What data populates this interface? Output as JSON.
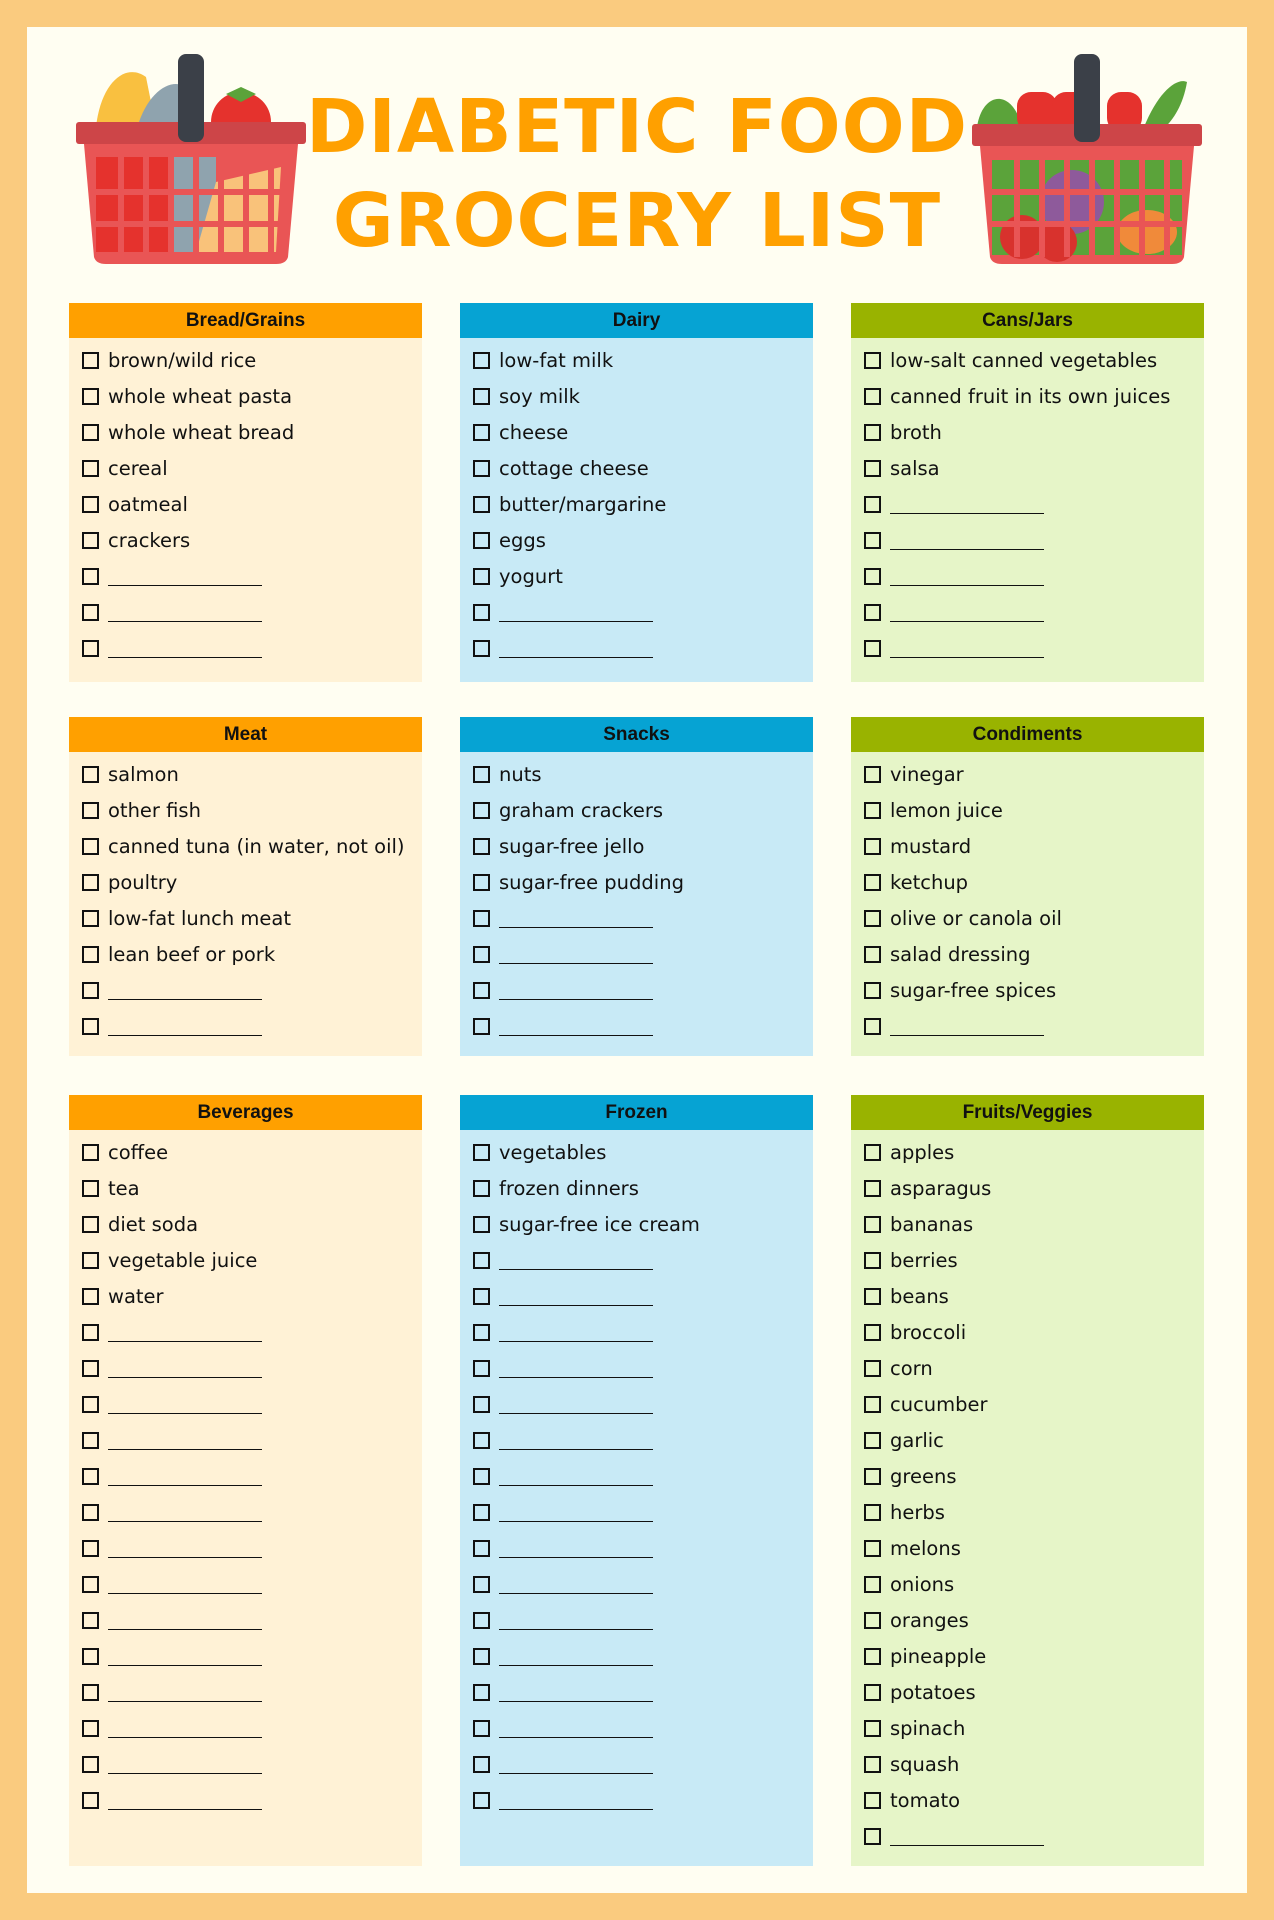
{
  "title": {
    "line1": "DIABETIC FOOD",
    "line2": "GROCERY LIST"
  },
  "colors": {
    "title": "#FFA000",
    "orange": "#FFA000",
    "blue": "#06A3D3",
    "green": "#99B300",
    "border": "#FACB7F"
  },
  "icons": {
    "left": "grocery-basket-fish-bread-icon",
    "right": "grocery-basket-vegetables-icon",
    "checkbox": "checkbox-empty-icon"
  },
  "sections": [
    {
      "title": "Bread/Grains",
      "theme": "orange",
      "items": [
        "brown/wild rice",
        "whole wheat pasta",
        "whole wheat bread",
        "cereal",
        "oatmeal",
        "crackers",
        "",
        "",
        ""
      ]
    },
    {
      "title": "Dairy",
      "theme": "blue",
      "items": [
        "low-fat milk",
        "soy milk",
        "cheese",
        "cottage cheese",
        "butter/margarine",
        "eggs",
        "yogurt",
        "",
        ""
      ]
    },
    {
      "title": "Cans/Jars",
      "theme": "green",
      "items": [
        "low-salt canned vegetables",
        "canned fruit in its own juices",
        "broth",
        "salsa",
        "",
        "",
        "",
        "",
        ""
      ]
    },
    {
      "title": "Meat",
      "theme": "orange",
      "items": [
        "salmon",
        "other fish",
        "canned tuna (in water, not oil)",
        "poultry",
        "low-fat lunch meat",
        "lean beef or pork",
        "",
        ""
      ]
    },
    {
      "title": "Snacks",
      "theme": "blue",
      "items": [
        "nuts",
        "graham crackers",
        "sugar-free jello",
        "sugar-free pudding",
        "",
        "",
        "",
        ""
      ]
    },
    {
      "title": "Condiments",
      "theme": "green",
      "items": [
        "vinegar",
        "lemon juice",
        "mustard",
        "ketchup",
        "olive or canola oil",
        "salad dressing",
        "sugar-free spices",
        ""
      ]
    },
    {
      "title": "Beverages",
      "theme": "orange",
      "items": [
        "coffee",
        "tea",
        "diet soda",
        "vegetable juice",
        "water",
        "",
        "",
        "",
        "",
        "",
        "",
        "",
        "",
        "",
        "",
        "",
        "",
        "",
        ""
      ]
    },
    {
      "title": "Frozen",
      "theme": "blue",
      "items": [
        "vegetables",
        "frozen dinners",
        "sugar-free ice cream",
        "",
        "",
        "",
        "",
        "",
        "",
        "",
        "",
        "",
        "",
        "",
        "",
        "",
        "",
        "",
        ""
      ]
    },
    {
      "title": "Fruits/Veggies",
      "theme": "green",
      "items": [
        "apples",
        "asparagus",
        "bananas",
        "berries",
        "beans",
        "broccoli",
        "corn",
        "cucumber",
        "garlic",
        "greens",
        "herbs",
        "melons",
        "onions",
        "oranges",
        "pineapple",
        "potatoes",
        "spinach",
        "squash",
        "tomato",
        ""
      ]
    }
  ]
}
